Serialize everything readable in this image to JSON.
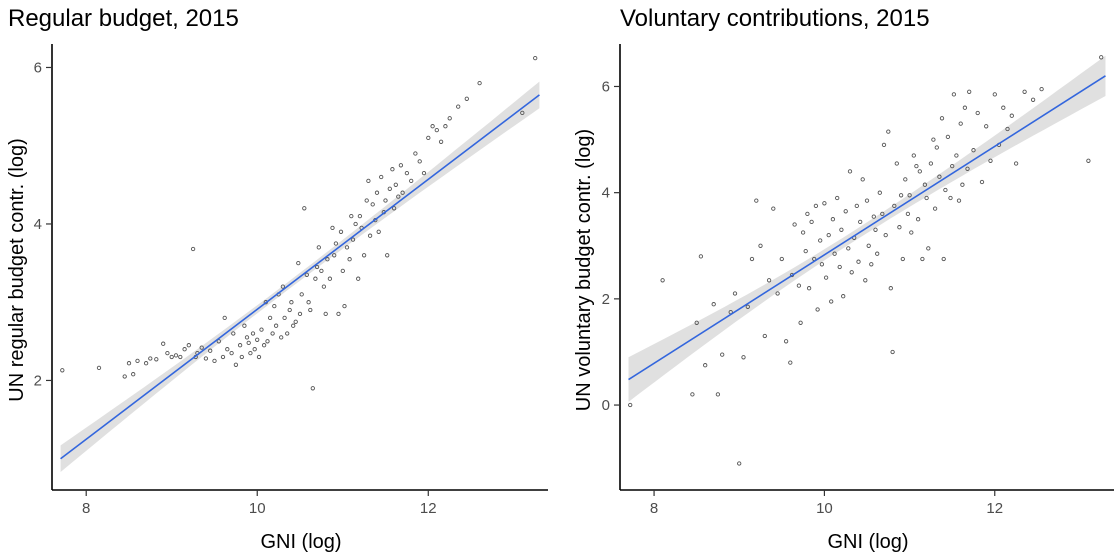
{
  "chart_data": [
    {
      "type": "scatter",
      "title": "Regular budget, 2015",
      "xlabel": "GNI (log)",
      "ylabel": "UN regular budget contr. (log)",
      "xlim": [
        7.6,
        13.4
      ],
      "ylim": [
        0.6,
        6.3
      ],
      "xticks": [
        8,
        10,
        12
      ],
      "yticks": [
        2,
        4,
        6
      ],
      "fit_line": {
        "x": [
          7.7,
          13.3
        ],
        "y": [
          1.0,
          5.65
        ]
      },
      "ci_halfwidth": {
        "x": [
          7.7,
          10.3,
          13.3
        ],
        "w": [
          0.17,
          0.05,
          0.17
        ]
      },
      "colors": {
        "points": "#555555",
        "fit": "#3366dd",
        "band": "#e0e0e0"
      },
      "points": [
        [
          7.72,
          2.13
        ],
        [
          8.15,
          2.16
        ],
        [
          8.45,
          2.05
        ],
        [
          8.5,
          2.22
        ],
        [
          8.55,
          2.08
        ],
        [
          8.6,
          2.25
        ],
        [
          8.7,
          2.22
        ],
        [
          8.75,
          2.28
        ],
        [
          8.82,
          2.27
        ],
        [
          8.9,
          2.47
        ],
        [
          8.95,
          2.35
        ],
        [
          9.0,
          2.3
        ],
        [
          9.05,
          2.32
        ],
        [
          9.1,
          2.3
        ],
        [
          9.15,
          2.4
        ],
        [
          9.2,
          2.45
        ],
        [
          9.25,
          3.68
        ],
        [
          9.28,
          2.3
        ],
        [
          9.3,
          2.35
        ],
        [
          9.35,
          2.42
        ],
        [
          9.4,
          2.28
        ],
        [
          9.45,
          2.38
        ],
        [
          9.5,
          2.25
        ],
        [
          9.55,
          2.5
        ],
        [
          9.6,
          2.3
        ],
        [
          9.62,
          2.8
        ],
        [
          9.65,
          2.4
        ],
        [
          9.7,
          2.35
        ],
        [
          9.72,
          2.6
        ],
        [
          9.75,
          2.2
        ],
        [
          9.8,
          2.45
        ],
        [
          9.82,
          2.3
        ],
        [
          9.85,
          2.7
        ],
        [
          9.88,
          2.55
        ],
        [
          9.9,
          2.48
        ],
        [
          9.92,
          2.35
        ],
        [
          9.95,
          2.6
        ],
        [
          9.97,
          2.4
        ],
        [
          10.0,
          2.52
        ],
        [
          10.02,
          2.3
        ],
        [
          10.05,
          2.65
        ],
        [
          10.08,
          2.45
        ],
        [
          10.1,
          3.0
        ],
        [
          10.12,
          2.5
        ],
        [
          10.15,
          2.8
        ],
        [
          10.18,
          2.6
        ],
        [
          10.2,
          2.95
        ],
        [
          10.22,
          2.7
        ],
        [
          10.25,
          3.1
        ],
        [
          10.28,
          2.55
        ],
        [
          10.3,
          3.2
        ],
        [
          10.32,
          2.8
        ],
        [
          10.35,
          2.6
        ],
        [
          10.38,
          2.9
        ],
        [
          10.4,
          3.0
        ],
        [
          10.42,
          2.7
        ],
        [
          10.45,
          2.75
        ],
        [
          10.48,
          3.5
        ],
        [
          10.5,
          2.85
        ],
        [
          10.52,
          3.1
        ],
        [
          10.55,
          4.2
        ],
        [
          10.58,
          3.35
        ],
        [
          10.6,
          3.0
        ],
        [
          10.62,
          2.9
        ],
        [
          10.65,
          1.9
        ],
        [
          10.68,
          3.3
        ],
        [
          10.7,
          3.45
        ],
        [
          10.72,
          3.7
        ],
        [
          10.75,
          3.4
        ],
        [
          10.78,
          3.2
        ],
        [
          10.8,
          2.85
        ],
        [
          10.82,
          3.55
        ],
        [
          10.85,
          3.3
        ],
        [
          10.88,
          3.95
        ],
        [
          10.9,
          3.6
        ],
        [
          10.92,
          3.75
        ],
        [
          10.95,
          2.85
        ],
        [
          10.98,
          3.9
        ],
        [
          11.0,
          3.4
        ],
        [
          11.02,
          2.95
        ],
        [
          11.05,
          3.7
        ],
        [
          11.08,
          3.55
        ],
        [
          11.1,
          4.1
        ],
        [
          11.12,
          3.8
        ],
        [
          11.15,
          4.0
        ],
        [
          11.18,
          3.3
        ],
        [
          11.2,
          4.1
        ],
        [
          11.22,
          3.95
        ],
        [
          11.25,
          3.6
        ],
        [
          11.28,
          4.3
        ],
        [
          11.3,
          4.55
        ],
        [
          11.32,
          3.85
        ],
        [
          11.35,
          4.25
        ],
        [
          11.38,
          4.05
        ],
        [
          11.4,
          4.4
        ],
        [
          11.42,
          3.9
        ],
        [
          11.45,
          4.6
        ],
        [
          11.48,
          4.15
        ],
        [
          11.5,
          4.3
        ],
        [
          11.52,
          3.6
        ],
        [
          11.55,
          4.45
        ],
        [
          11.58,
          4.7
        ],
        [
          11.6,
          4.2
        ],
        [
          11.62,
          4.5
        ],
        [
          11.65,
          4.35
        ],
        [
          11.68,
          4.75
        ],
        [
          11.7,
          4.4
        ],
        [
          11.75,
          4.65
        ],
        [
          11.8,
          4.55
        ],
        [
          11.85,
          4.9
        ],
        [
          11.9,
          4.8
        ],
        [
          11.95,
          4.65
        ],
        [
          12.0,
          5.1
        ],
        [
          12.05,
          5.25
        ],
        [
          12.1,
          5.2
        ],
        [
          12.15,
          5.05
        ],
        [
          12.2,
          5.25
        ],
        [
          12.25,
          5.35
        ],
        [
          12.35,
          5.5
        ],
        [
          12.45,
          5.6
        ],
        [
          12.6,
          5.8
        ],
        [
          13.1,
          5.42
        ],
        [
          13.25,
          6.12
        ]
      ]
    },
    {
      "type": "scatter",
      "title": "Voluntary contributions, 2015",
      "xlabel": "GNI (log)",
      "ylabel": "UN voluntary budget contr. (log)",
      "xlim": [
        7.6,
        13.4
      ],
      "ylim": [
        -1.6,
        6.8
      ],
      "xticks": [
        8,
        10,
        12
      ],
      "yticks": [
        0,
        2,
        4,
        6
      ],
      "fit_line": {
        "x": [
          7.7,
          13.3
        ],
        "y": [
          0.48,
          6.2
        ]
      },
      "ci_halfwidth": {
        "x": [
          7.7,
          10.3,
          13.3
        ],
        "w": [
          0.42,
          0.1,
          0.38
        ]
      },
      "colors": {
        "points": "#555555",
        "fit": "#3366dd",
        "band": "#e0e0e0"
      },
      "points": [
        [
          7.72,
          0.0
        ],
        [
          8.1,
          2.35
        ],
        [
          8.45,
          0.2
        ],
        [
          8.5,
          1.55
        ],
        [
          8.55,
          2.8
        ],
        [
          8.6,
          0.75
        ],
        [
          8.7,
          1.9
        ],
        [
          8.75,
          0.2
        ],
        [
          8.8,
          0.95
        ],
        [
          8.9,
          1.75
        ],
        [
          8.95,
          2.1
        ],
        [
          9.0,
          -1.1
        ],
        [
          9.05,
          0.9
        ],
        [
          9.1,
          1.85
        ],
        [
          9.15,
          2.75
        ],
        [
          9.2,
          3.85
        ],
        [
          9.25,
          3.0
        ],
        [
          9.3,
          1.3
        ],
        [
          9.35,
          2.35
        ],
        [
          9.4,
          3.7
        ],
        [
          9.45,
          2.1
        ],
        [
          9.5,
          2.75
        ],
        [
          9.55,
          1.2
        ],
        [
          9.6,
          0.8
        ],
        [
          9.62,
          2.45
        ],
        [
          9.65,
          3.4
        ],
        [
          9.7,
          2.25
        ],
        [
          9.72,
          1.55
        ],
        [
          9.75,
          3.25
        ],
        [
          9.78,
          2.9
        ],
        [
          9.8,
          3.6
        ],
        [
          9.82,
          2.2
        ],
        [
          9.85,
          3.45
        ],
        [
          9.88,
          2.75
        ],
        [
          9.9,
          3.75
        ],
        [
          9.92,
          1.8
        ],
        [
          9.95,
          3.1
        ],
        [
          9.97,
          2.65
        ],
        [
          10.0,
          3.8
        ],
        [
          10.02,
          2.4
        ],
        [
          10.05,
          3.2
        ],
        [
          10.08,
          1.95
        ],
        [
          10.1,
          3.5
        ],
        [
          10.12,
          2.85
        ],
        [
          10.15,
          3.9
        ],
        [
          10.18,
          2.6
        ],
        [
          10.2,
          3.3
        ],
        [
          10.22,
          2.05
        ],
        [
          10.25,
          3.65
        ],
        [
          10.28,
          2.95
        ],
        [
          10.3,
          4.4
        ],
        [
          10.32,
          2.5
        ],
        [
          10.35,
          3.15
        ],
        [
          10.38,
          3.75
        ],
        [
          10.4,
          2.7
        ],
        [
          10.42,
          3.45
        ],
        [
          10.45,
          4.25
        ],
        [
          10.48,
          2.35
        ],
        [
          10.5,
          3.85
        ],
        [
          10.52,
          3.0
        ],
        [
          10.55,
          2.65
        ],
        [
          10.58,
          3.55
        ],
        [
          10.6,
          3.3
        ],
        [
          10.62,
          2.85
        ],
        [
          10.65,
          4.0
        ],
        [
          10.68,
          3.6
        ],
        [
          10.7,
          4.9
        ],
        [
          10.72,
          3.2
        ],
        [
          10.75,
          5.15
        ],
        [
          10.78,
          2.2
        ],
        [
          10.8,
          1.0
        ],
        [
          10.82,
          3.75
        ],
        [
          10.85,
          4.55
        ],
        [
          10.88,
          3.35
        ],
        [
          10.9,
          3.95
        ],
        [
          10.92,
          2.75
        ],
        [
          10.95,
          4.25
        ],
        [
          10.98,
          3.6
        ],
        [
          11.0,
          3.95
        ],
        [
          11.02,
          3.25
        ],
        [
          11.05,
          4.7
        ],
        [
          11.08,
          4.5
        ],
        [
          11.1,
          3.5
        ],
        [
          11.12,
          4.4
        ],
        [
          11.15,
          2.75
        ],
        [
          11.18,
          4.15
        ],
        [
          11.2,
          3.9
        ],
        [
          11.22,
          2.95
        ],
        [
          11.25,
          4.55
        ],
        [
          11.28,
          5.0
        ],
        [
          11.3,
          3.7
        ],
        [
          11.32,
          4.85
        ],
        [
          11.35,
          4.3
        ],
        [
          11.38,
          5.4
        ],
        [
          11.4,
          2.75
        ],
        [
          11.42,
          4.05
        ],
        [
          11.45,
          5.05
        ],
        [
          11.48,
          3.9
        ],
        [
          11.5,
          4.5
        ],
        [
          11.52,
          5.85
        ],
        [
          11.55,
          4.7
        ],
        [
          11.58,
          3.85
        ],
        [
          11.6,
          5.3
        ],
        [
          11.62,
          4.15
        ],
        [
          11.65,
          5.6
        ],
        [
          11.68,
          4.45
        ],
        [
          11.7,
          5.9
        ],
        [
          11.75,
          4.8
        ],
        [
          11.8,
          5.5
        ],
        [
          11.85,
          4.2
        ],
        [
          11.9,
          5.25
        ],
        [
          11.95,
          4.6
        ],
        [
          12.0,
          5.85
        ],
        [
          12.05,
          4.9
        ],
        [
          12.1,
          5.6
        ],
        [
          12.15,
          5.2
        ],
        [
          12.2,
          5.45
        ],
        [
          12.25,
          4.55
        ],
        [
          12.35,
          5.9
        ],
        [
          12.45,
          5.75
        ],
        [
          12.55,
          5.95
        ],
        [
          13.1,
          4.6
        ],
        [
          13.25,
          6.55
        ]
      ]
    }
  ]
}
